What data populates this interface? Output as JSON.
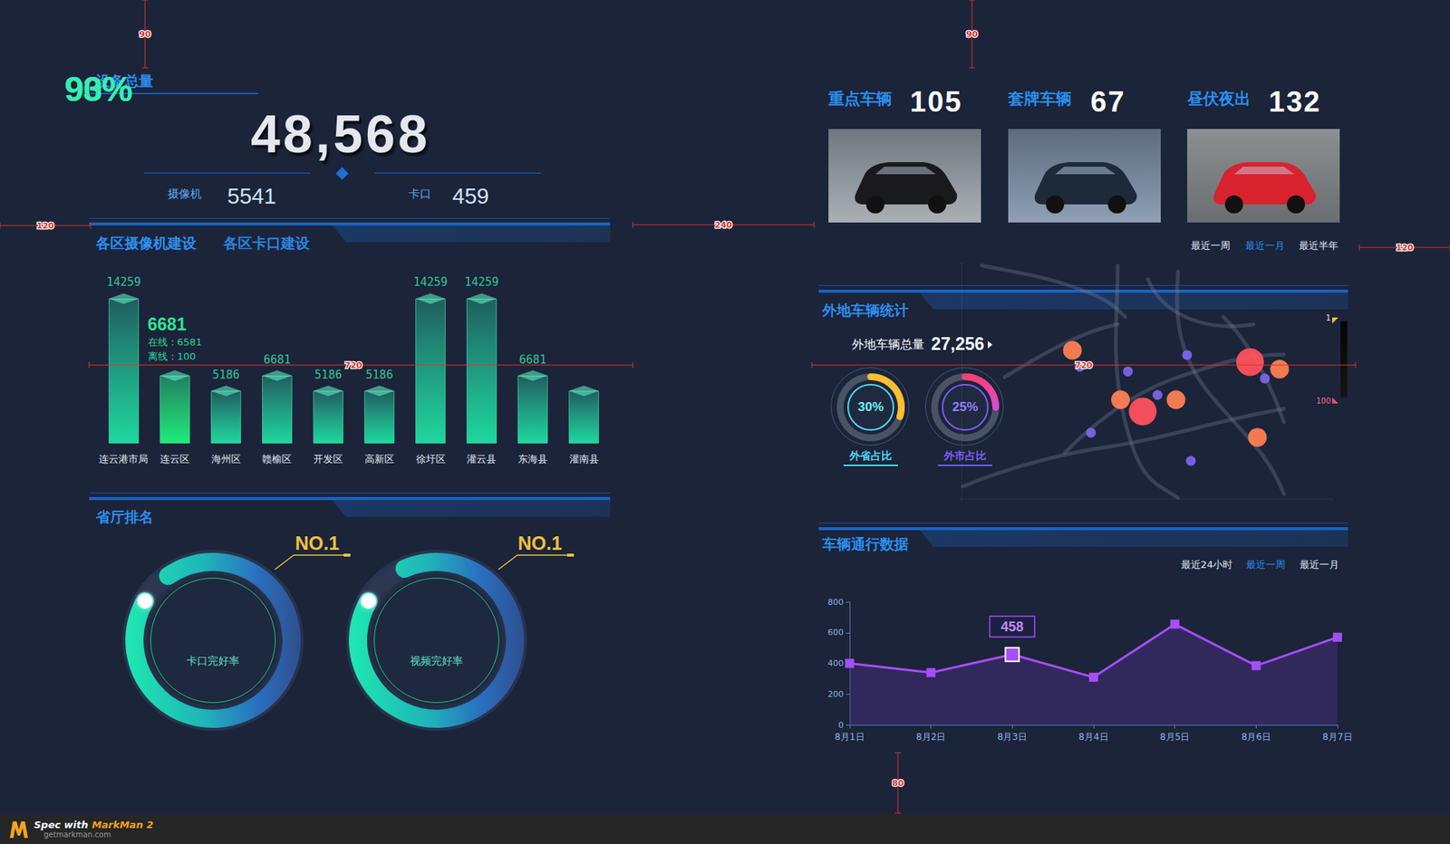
{
  "device_total": {
    "title": "设备总量",
    "total": "48,568",
    "items": [
      {
        "label": "摄像机",
        "value": 5541
      },
      {
        "label": "卡口",
        "value": 459
      }
    ]
  },
  "district_tabs": [
    "各区摄像机建设",
    "各区卡口建设"
  ],
  "ranking_title": "省厅排名",
  "key_vehicles": {
    "items": [
      {
        "label": "重点车辆",
        "value": 105
      },
      {
        "label": "套牌车辆",
        "value": 67
      },
      {
        "label": "昼伏夜出",
        "value": 132
      }
    ],
    "periods": [
      "最近一周",
      "最近一月",
      "最近半年"
    ],
    "active_period": "最近一月"
  },
  "nonlocal": {
    "title": "外地车辆统计",
    "total_label": "外地车辆总量",
    "total": "27,256"
  },
  "traffic": {
    "title": "车辆通行数据",
    "periods": [
      "最近24小时",
      "最近一周",
      "最近一月"
    ],
    "active_period": "最近一周"
  },
  "chart_data": [
    {
      "type": "bar",
      "categories": [
        "连云港市局",
        "连云区",
        "海州区",
        "赣榆区",
        "开发区",
        "高新区",
        "徐圩区",
        "灌云县",
        "东海县",
        "灌南县"
      ],
      "values": [
        14259,
        6681,
        5186,
        6681,
        5186,
        5186,
        14259,
        14259,
        6681,
        5186
      ],
      "value_labels": [
        "14259",
        "6681",
        "5186",
        "6681",
        "5186",
        "5186",
        "14259",
        "14259",
        "6681",
        null
      ],
      "data_labels": true,
      "tick_labels": "x",
      "annotations": [
        {
          "category": "连云区",
          "lines": [
            "在线：6581",
            "离线：100"
          ]
        }
      ]
    },
    {
      "type": "gauge",
      "title": "卡口完好率",
      "values": [
        93
      ],
      "value_labels": [
        "93%"
      ],
      "ylim": [
        0,
        100
      ],
      "annotations": [
        "NO.1"
      ]
    },
    {
      "type": "gauge",
      "title": "视频完好率",
      "values": [
        90
      ],
      "value_labels": [
        "90%"
      ],
      "ylim": [
        0,
        100
      ],
      "annotations": [
        "NO.1"
      ]
    },
    {
      "type": "gauge",
      "title": "外省占比",
      "values": [
        30
      ],
      "value_labels": [
        "30%"
      ],
      "ylim": [
        0,
        100
      ]
    },
    {
      "type": "gauge",
      "title": "外市占比",
      "values": [
        25
      ],
      "value_labels": [
        "25%"
      ],
      "ylim": [
        0,
        100
      ]
    },
    {
      "type": "scatter",
      "x": [
        30,
        32,
        45,
        43,
        49,
        53,
        58,
        61,
        78,
        86,
        82,
        80,
        35,
        62
      ],
      "y": [
        63,
        56,
        54,
        42,
        37,
        44,
        42,
        61,
        58,
        55,
        51,
        26,
        28,
        16
      ],
      "values": [
        50,
        5,
        5,
        50,
        95,
        5,
        50,
        5,
        95,
        50,
        5,
        50,
        5,
        5
      ],
      "xlim": [
        0,
        100
      ],
      "ylim": [
        0,
        100
      ],
      "xticks": [
        0,
        100
      ],
      "yticks": [
        0,
        100
      ],
      "tick_labels": false,
      "color_range": [
        1,
        100
      ],
      "color_ticks": [
        1,
        100
      ]
    },
    {
      "type": "line",
      "categories": [
        "8月1日",
        "8月2日",
        "8月3日",
        "8月4日",
        "8月5日",
        "8月6日",
        "8月7日"
      ],
      "values": [
        400,
        340,
        458,
        310,
        655,
        385,
        570
      ],
      "ylim": [
        0,
        800
      ],
      "yticks": [
        0,
        200,
        400,
        600,
        800
      ],
      "grid": false,
      "marker": "square",
      "color": "#a64dff",
      "annotations": [
        {
          "x": "8月3日",
          "value": 458
        }
      ]
    }
  ],
  "spec_marks": [
    90,
    90,
    120,
    240,
    120,
    720,
    720,
    80
  ],
  "footer": {
    "text": "Spec with",
    "brand": "MarkMan 2",
    "site": "getmarkman.com"
  }
}
